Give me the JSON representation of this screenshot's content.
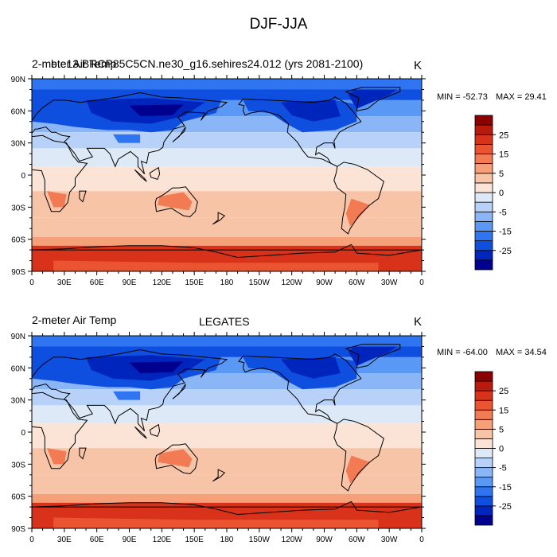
{
  "main_title": "DJF-JJA",
  "lon_ticks": [
    "0",
    "30E",
    "60E",
    "90E",
    "120E",
    "150E",
    "180",
    "150W",
    "120W",
    "90W",
    "60W",
    "30W",
    "0"
  ],
  "lat_ticks": [
    "90N",
    "60N",
    "30N",
    "0",
    "30S",
    "60S",
    "90S"
  ],
  "colorbar": {
    "colors": [
      "#00008e",
      "#0025bd",
      "#0e4fe0",
      "#2f75f1",
      "#5a98f6",
      "#8ab6f8",
      "#b7d1f8",
      "#dde9f6",
      "#fbe4d6",
      "#f8c4a7",
      "#f6a07a",
      "#f27b53",
      "#ea5430",
      "#d8331a",
      "#b81b0e",
      "#8b0000"
    ],
    "labels": [
      "-25",
      "-15",
      "-5",
      "0",
      "5",
      "15",
      "25"
    ]
  },
  "panels": [
    {
      "left_title": "2-meter Air Temp",
      "center_title": "b.e13.BRCP85C5CN.ne30_g16.sehires24.012 (yrs 2081-2100)",
      "units": "K",
      "min_label": "MIN = -52.73",
      "max_label": "MAX =  29.41"
    },
    {
      "left_title": "2-meter Air Temp",
      "center_title": "LEGATES",
      "units": "K",
      "min_label": "MIN = -64.00",
      "max_label": "MAX =  34.54"
    }
  ]
}
